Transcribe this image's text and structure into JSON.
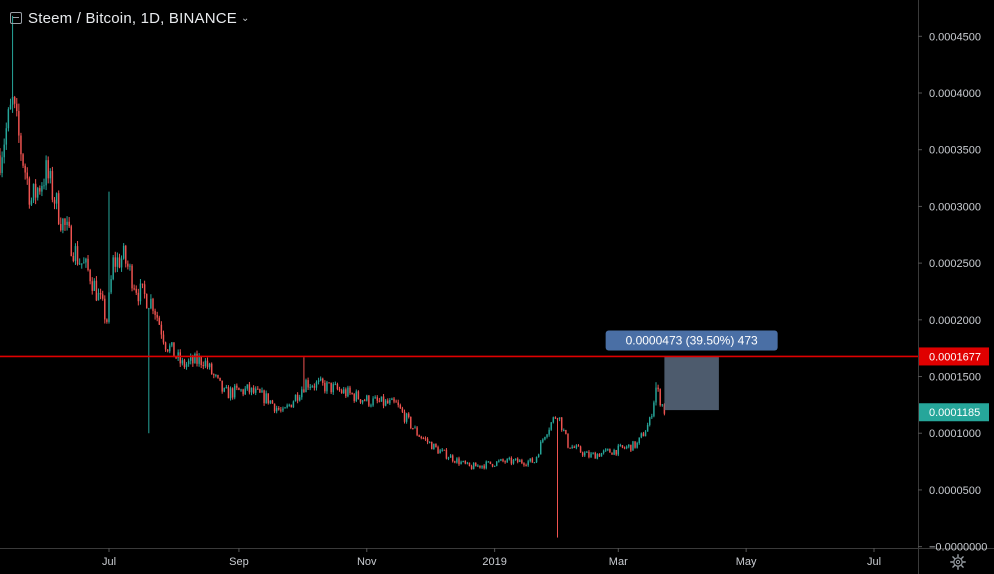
{
  "header": {
    "title": "Steem / Bitcoin, 1D, BINANCE"
  },
  "colors": {
    "up": "#26a69a",
    "down": "#ef5350",
    "hline": "#e00000",
    "measure_box": "#5b6b80",
    "measure_label": "#4a6fa5",
    "last_price_bg": "#26a69a",
    "hline_label_bg": "#e00000"
  },
  "price_axis": {
    "ticks": [
      "0.0004500",
      "0.0004000",
      "0.0003500",
      "0.0003000",
      "0.0002500",
      "0.0002000",
      "0.0001500",
      "0.0001000",
      "0.0000500",
      "−0.0000000"
    ]
  },
  "time_axis": {
    "ticks": [
      "Jul",
      "Sep",
      "Nov",
      "2019",
      "Mar",
      "May",
      "Jul"
    ]
  },
  "labels": {
    "hline_price": "0.0001677",
    "last_price": "0.0001185",
    "measure": "0.0000473 (39.50%) 473"
  },
  "icons": {
    "settings": "gear-icon",
    "collapse": "collapse-icon",
    "dropdown": "chevron-down-icon"
  },
  "chart_data": {
    "type": "candlestick",
    "title": "Steem / Bitcoin, 1D, BINANCE",
    "ylim": [
      -1.2e-06,
      0.000482
    ],
    "x_start": "2018-05-10",
    "x_end": "2019-07-22",
    "horizontal_line": 0.0001677,
    "last_price": 0.0001185,
    "measure": {
      "from": "2019-03-23",
      "to": "2019-04-18",
      "low": 0.0001204,
      "high": 0.0001677,
      "change": "0.0000473 (39.50%) 473"
    },
    "path_points": [
      [
        "2018-05-10",
        0.000345
      ],
      [
        "2018-05-16",
        0.00039
      ],
      [
        "2018-05-20",
        0.00035
      ],
      [
        "2018-05-25",
        0.000305
      ],
      [
        "2018-06-01",
        0.00033
      ],
      [
        "2018-06-08",
        0.00029
      ],
      [
        "2018-06-16",
        0.000255
      ],
      [
        "2018-06-22",
        0.00024
      ],
      [
        "2018-06-30",
        0.0002
      ],
      [
        "2018-07-03",
        0.00025
      ],
      [
        "2018-07-08",
        0.000255
      ],
      [
        "2018-07-15",
        0.000225
      ],
      [
        "2018-07-22",
        0.000215
      ],
      [
        "2018-07-28",
        0.00018
      ],
      [
        "2018-08-05",
        0.00016
      ],
      [
        "2018-08-15",
        0.000165
      ],
      [
        "2018-08-25",
        0.000135
      ],
      [
        "2018-09-05",
        0.000138
      ],
      [
        "2018-09-15",
        0.00013
      ],
      [
        "2018-09-22",
        0.000117
      ],
      [
        "2018-10-03",
        0.000145
      ],
      [
        "2018-10-15",
        0.00014
      ],
      [
        "2018-11-03",
        0.000128
      ],
      [
        "2018-11-15",
        0.000125
      ],
      [
        "2018-11-25",
        0.0001
      ],
      [
        "2018-12-05",
        8.5e-05
      ],
      [
        "2018-12-20",
        7e-05
      ],
      [
        "2019-01-05",
        7.5e-05
      ],
      [
        "2019-01-20",
        7.5e-05
      ],
      [
        "2019-01-25",
        0.0001
      ],
      [
        "2019-01-31",
        0.000118
      ],
      [
        "2019-02-05",
        9e-05
      ],
      [
        "2019-02-15",
        8e-05
      ],
      [
        "2019-02-28",
        8.5e-05
      ],
      [
        "2019-03-10",
        9e-05
      ],
      [
        "2019-03-16",
        0.00011
      ],
      [
        "2019-03-19",
        0.00014
      ],
      [
        "2019-03-23",
        0.00012
      ]
    ],
    "wick_extremes": [
      {
        "date": "2018-05-16",
        "high": 0.000468
      },
      {
        "date": "2018-07-01",
        "high": 0.000313
      },
      {
        "date": "2018-07-20",
        "low": 0.0001
      },
      {
        "date": "2018-10-02",
        "high": 0.000167
      },
      {
        "date": "2019-01-31",
        "low": 8e-06
      },
      {
        "date": "2019-03-19",
        "high": 0.000145
      }
    ]
  }
}
